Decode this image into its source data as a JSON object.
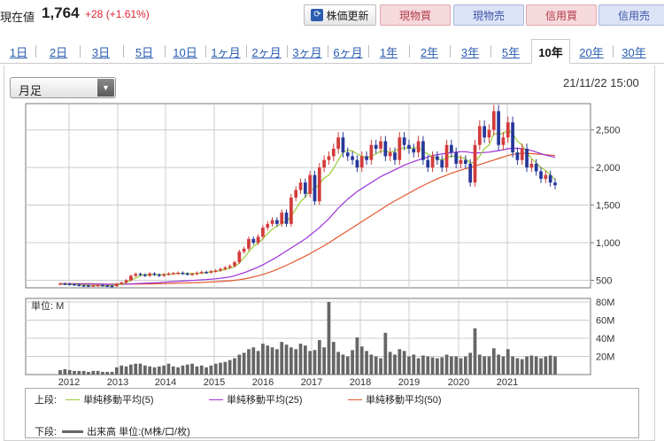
{
  "header": {
    "label": "現在値",
    "price": "1,764",
    "change": "+28 (+1.61%)",
    "refresh_icon": "refresh-icon",
    "refresh_label": "株価更新",
    "actions": [
      "現物買",
      "現物売",
      "信用買",
      "信用売"
    ]
  },
  "tabs": [
    "1日",
    "2日",
    "3日",
    "5日",
    "10日",
    "1ヶ月",
    "2ヶ月",
    "3ヶ月",
    "6ヶ月",
    "1年",
    "2年",
    "3年",
    "5年",
    "10年",
    "20年",
    "30年"
  ],
  "active_tab": "10年",
  "chart": {
    "period_select": "月足",
    "datetime": "21/11/22 15:00",
    "volume_unit_label": "単位: M",
    "x_tick_labels": [
      "2012",
      "2013",
      "2014",
      "2015",
      "2016",
      "2017",
      "2018",
      "2019",
      "2020",
      "2021"
    ],
    "price_tick_labels": [
      "2,500",
      "2,000",
      "1,500",
      "1,000",
      "500"
    ],
    "volume_tick_labels": [
      "80M",
      "60M",
      "40M",
      "20M"
    ]
  },
  "legend": {
    "upper_label": "上段:",
    "lower_label": "下段:",
    "ma5": "単純移動平均(5)",
    "ma25": "単純移動平均(25)",
    "ma50": "単純移動平均(50)",
    "volume": "出来高 単位:(M株/口/枚)"
  },
  "colors": {
    "up": "#d23c3c",
    "down": "#27389a",
    "ma5": "#9acd32",
    "ma25": "#9b30d8",
    "ma50": "#e4572e",
    "volume": "#666666"
  },
  "chart_data": {
    "type": "candlestick",
    "x_ticks": [
      "2012",
      "2013",
      "2014",
      "2015",
      "2016",
      "2017",
      "2018",
      "2019",
      "2020",
      "2021"
    ],
    "price_ylim": [
      400,
      2850
    ],
    "price_yticks": [
      500,
      1000,
      1500,
      2000,
      2500
    ],
    "volume_ylim": [
      0,
      80
    ],
    "volume_yticks": [
      20,
      40,
      60,
      80
    ],
    "volume_unit": "M",
    "close_approx": [
      455,
      452,
      448,
      440,
      432,
      430,
      428,
      432,
      436,
      430,
      426,
      422,
      452,
      470,
      500,
      560,
      585,
      575,
      560,
      590,
      575,
      560,
      580,
      590,
      595,
      600,
      590,
      580,
      585,
      600,
      610,
      605,
      620,
      630,
      650,
      670,
      690,
      740,
      880,
      920,
      1050,
      1000,
      1080,
      1200,
      1250,
      1300,
      1250,
      1400,
      1250,
      1600,
      1700,
      1800,
      1650,
      1900,
      1550,
      2000,
      2100,
      2150,
      2250,
      2400,
      2200,
      2150,
      2100,
      2000,
      2150,
      2100,
      2300,
      2250,
      2350,
      2150,
      2200,
      2100,
      2400,
      2300,
      2250,
      2200,
      2350,
      2100,
      2000,
      2150,
      2100,
      2000,
      2300,
      2200,
      2050,
      2100,
      2050,
      1800,
      2300,
      2550,
      2400,
      2500,
      2750,
      2300,
      2400,
      2600,
      2200,
      2100,
      2250,
      2000,
      2050,
      1950,
      1850,
      1900,
      1800,
      1764
    ],
    "volume_approx_M": [
      5,
      6,
      5,
      4,
      4,
      4,
      3,
      4,
      4,
      3,
      3,
      3,
      8,
      10,
      9,
      11,
      12,
      12,
      10,
      9,
      8,
      9,
      10,
      12,
      9,
      8,
      10,
      11,
      12,
      9,
      10,
      8,
      10,
      12,
      13,
      14,
      16,
      18,
      22,
      24,
      28,
      30,
      26,
      34,
      32,
      30,
      28,
      36,
      33,
      30,
      28,
      34,
      32,
      26,
      27,
      38,
      30,
      80,
      36,
      25,
      22,
      20,
      27,
      41,
      31,
      26,
      22,
      20,
      18,
      46,
      25,
      22,
      28,
      26,
      20,
      22,
      18,
      21,
      20,
      19,
      18,
      19,
      22,
      20,
      20,
      18,
      20,
      24,
      51,
      22,
      20,
      20,
      29,
      22,
      20,
      28,
      20,
      18,
      17,
      20,
      21,
      20,
      18,
      20,
      21,
      20
    ],
    "ma5_approx": [
      450,
      450,
      447,
      445,
      440,
      436,
      432,
      430,
      430,
      430,
      428,
      428,
      435,
      450,
      470,
      500,
      530,
      560,
      575,
      575,
      575,
      575,
      575,
      578,
      585,
      590,
      592,
      590,
      588,
      590,
      598,
      605,
      612,
      620,
      630,
      645,
      660,
      680,
      730,
      800,
      880,
      950,
      1000,
      1050,
      1120,
      1180,
      1220,
      1260,
      1280,
      1350,
      1450,
      1550,
      1600,
      1700,
      1720,
      1780,
      1860,
      1900,
      1990,
      2100,
      2200,
      2230,
      2220,
      2180,
      2150,
      2130,
      2150,
      2180,
      2220,
      2220,
      2200,
      2220,
      2250,
      2260,
      2260,
      2260,
      2270,
      2220,
      2180,
      2150,
      2120,
      2100,
      2130,
      2150,
      2150,
      2130,
      2120,
      2060,
      2070,
      2150,
      2250,
      2300,
      2450,
      2450,
      2450,
      2500,
      2450,
      2350,
      2300,
      2200,
      2120,
      2060,
      2000,
      1960,
      1900,
      1840
    ],
    "ma25_approx": [
      455,
      455,
      454,
      453,
      452,
      451,
      450,
      449,
      448,
      447,
      446,
      445,
      446,
      447,
      449,
      452,
      455,
      458,
      461,
      464,
      467,
      470,
      474,
      478,
      482,
      486,
      490,
      494,
      498,
      502,
      506,
      510,
      515,
      520,
      527,
      535,
      545,
      560,
      580,
      600,
      625,
      650,
      675,
      705,
      740,
      775,
      810,
      850,
      890,
      930,
      970,
      1010,
      1050,
      1100,
      1150,
      1200,
      1260,
      1320,
      1390,
      1460,
      1520,
      1580,
      1630,
      1680,
      1720,
      1760,
      1800,
      1840,
      1880,
      1910,
      1940,
      1970,
      2000,
      2030,
      2055,
      2080,
      2100,
      2120,
      2140,
      2160,
      2170,
      2180,
      2190,
      2200,
      2205,
      2210,
      2210,
      2200,
      2195,
      2195,
      2200,
      2205,
      2215,
      2225,
      2235,
      2250,
      2255,
      2255,
      2250,
      2240,
      2225,
      2205,
      2185,
      2165,
      2150,
      2135
    ],
    "ma50_approx": [
      455,
      455,
      455,
      455,
      455,
      454,
      454,
      453,
      452,
      451,
      450,
      449,
      449,
      449,
      449,
      449,
      450,
      450,
      451,
      452,
      453,
      454,
      455,
      457,
      459,
      461,
      463,
      465,
      467,
      469,
      471,
      474,
      477,
      480,
      484,
      488,
      493,
      500,
      508,
      518,
      530,
      545,
      560,
      578,
      598,
      620,
      645,
      672,
      700,
      730,
      760,
      790,
      822,
      855,
      890,
      925,
      960,
      1000,
      1040,
      1080,
      1120,
      1160,
      1200,
      1240,
      1280,
      1320,
      1360,
      1400,
      1440,
      1480,
      1520,
      1555,
      1590,
      1625,
      1660,
      1695,
      1730,
      1760,
      1790,
      1820,
      1850,
      1875,
      1900,
      1925,
      1945,
      1965,
      1985,
      2000,
      2020,
      2040,
      2060,
      2080,
      2100,
      2120,
      2140,
      2160,
      2175,
      2185,
      2190,
      2190,
      2185,
      2180,
      2175,
      2170,
      2165,
      2160
    ]
  }
}
